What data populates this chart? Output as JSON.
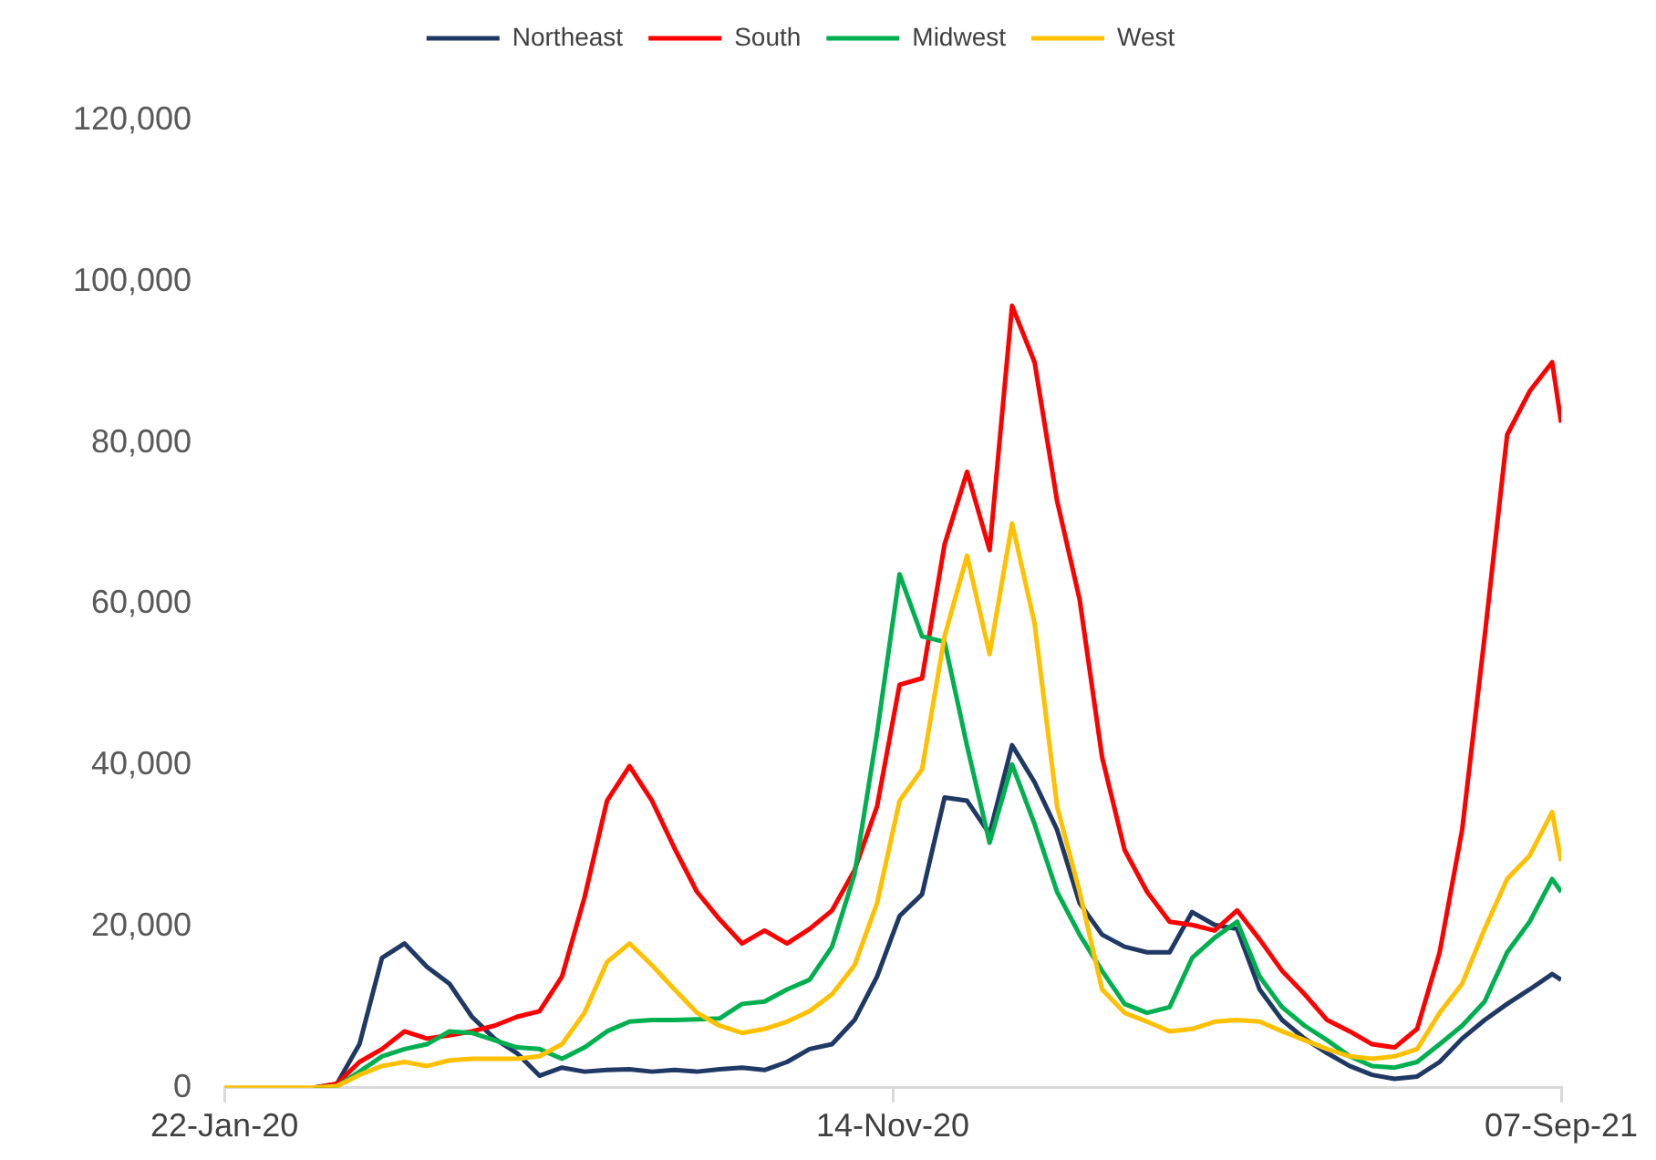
{
  "chart_data": {
    "type": "line",
    "x": [
      "2020-01-22",
      "2020-02-01",
      "2020-02-11",
      "2020-02-21",
      "2020-03-02",
      "2020-03-12",
      "2020-03-22",
      "2020-04-01",
      "2020-04-11",
      "2020-04-21",
      "2020-05-01",
      "2020-05-11",
      "2020-05-21",
      "2020-05-31",
      "2020-06-10",
      "2020-06-20",
      "2020-06-30",
      "2020-07-10",
      "2020-07-20",
      "2020-07-30",
      "2020-08-09",
      "2020-08-19",
      "2020-08-29",
      "2020-09-08",
      "2020-09-18",
      "2020-09-28",
      "2020-10-08",
      "2020-10-18",
      "2020-10-28",
      "2020-11-07",
      "2020-11-17",
      "2020-11-27",
      "2020-12-07",
      "2020-12-17",
      "2020-12-27",
      "2021-01-06",
      "2021-01-16",
      "2021-01-26",
      "2021-02-05",
      "2021-02-15",
      "2021-02-25",
      "2021-03-07",
      "2021-03-17",
      "2021-03-27",
      "2021-04-06",
      "2021-04-16",
      "2021-04-26",
      "2021-05-06",
      "2021-05-16",
      "2021-05-26",
      "2021-06-05",
      "2021-06-15",
      "2021-06-25",
      "2021-07-05",
      "2021-07-15",
      "2021-07-25",
      "2021-08-04",
      "2021-08-14",
      "2021-08-24",
      "2021-09-03",
      "2021-09-07"
    ],
    "series": [
      {
        "name": "Northeast",
        "color": "#203864",
        "values": [
          null,
          null,
          null,
          null,
          0,
          500,
          5400,
          16100,
          17900,
          15000,
          12900,
          8800,
          6100,
          4300,
          1500,
          2500,
          2000,
          2200,
          2300,
          2000,
          2200,
          2000,
          2300,
          2500,
          2200,
          3200,
          4800,
          5400,
          8400,
          13800,
          21300,
          24000,
          36000,
          35600,
          31500,
          42500,
          37900,
          32000,
          22900,
          19000,
          17500,
          16800,
          16800,
          21800,
          20200,
          19700,
          12200,
          8400,
          6100,
          4300,
          2700,
          1600,
          1100,
          1400,
          3200,
          6100,
          8400,
          10400,
          12200,
          14100,
          13400
        ]
      },
      {
        "name": "South",
        "color": "#ff0000",
        "values": [
          null,
          null,
          null,
          null,
          0,
          500,
          3200,
          4800,
          7000,
          6100,
          6500,
          7000,
          7700,
          8800,
          9500,
          13800,
          23600,
          35600,
          39900,
          35600,
          29700,
          24300,
          20900,
          17900,
          19500,
          17900,
          19700,
          22000,
          27000,
          34900,
          50000,
          50800,
          67400,
          76400,
          66700,
          97000,
          90000,
          72800,
          60600,
          41000,
          29500,
          24300,
          20600,
          20200,
          19500,
          22000,
          18400,
          14500,
          11600,
          8400,
          7000,
          5400,
          5000,
          7300,
          16800,
          32000,
          56000,
          81000,
          86400,
          90000,
          82500
        ]
      },
      {
        "name": "Midwest",
        "color": "#00b050",
        "values": [
          null,
          null,
          null,
          null,
          0,
          200,
          2000,
          3900,
          4800,
          5400,
          7000,
          6800,
          5900,
          5000,
          4800,
          3600,
          5000,
          7000,
          8200,
          8400,
          8400,
          8500,
          8600,
          10400,
          10700,
          12200,
          13400,
          17500,
          26500,
          44000,
          63700,
          56000,
          55300,
          42400,
          30400,
          40100,
          32700,
          24300,
          19000,
          14500,
          10400,
          9300,
          10000,
          16100,
          18600,
          20600,
          13800,
          10000,
          7700,
          5900,
          3900,
          2700,
          2500,
          3200,
          5400,
          7700,
          10700,
          16800,
          20600,
          25900,
          24300
        ]
      },
      {
        "name": "West",
        "color": "#ffc000",
        "values": [
          0,
          0,
          0,
          0,
          0,
          200,
          1600,
          2700,
          3200,
          2700,
          3400,
          3600,
          3600,
          3600,
          3900,
          5400,
          9300,
          15600,
          17900,
          15200,
          12200,
          9300,
          7700,
          6800,
          7300,
          8200,
          9500,
          11600,
          15200,
          22900,
          35600,
          39500,
          56000,
          66000,
          53800,
          70000,
          57600,
          34900,
          24300,
          12200,
          9300,
          8200,
          7000,
          7300,
          8200,
          8400,
          8200,
          7000,
          5900,
          4800,
          3900,
          3600,
          3900,
          4800,
          9300,
          12900,
          19700,
          25900,
          28800,
          34200,
          28100
        ]
      }
    ],
    "xlim": [
      "2020-01-22",
      "2021-09-07"
    ],
    "xticks": [
      {
        "value": "2020-01-22",
        "label": "22-Jan-20"
      },
      {
        "value": "2020-11-14",
        "label": "14-Nov-20"
      },
      {
        "value": "2021-09-07",
        "label": "07-Sep-21"
      }
    ],
    "ylim": [
      0,
      120000
    ],
    "yticks": [
      {
        "value": 0,
        "label": "0"
      },
      {
        "value": 20000,
        "label": "20,000"
      },
      {
        "value": 40000,
        "label": "40,000"
      },
      {
        "value": 60000,
        "label": "60,000"
      },
      {
        "value": 80000,
        "label": "80,000"
      },
      {
        "value": 100000,
        "label": "100,000"
      },
      {
        "value": 120000,
        "label": "120,000"
      }
    ],
    "grid": false,
    "legend": "top",
    "marker": "none",
    "line_style": "solid"
  }
}
